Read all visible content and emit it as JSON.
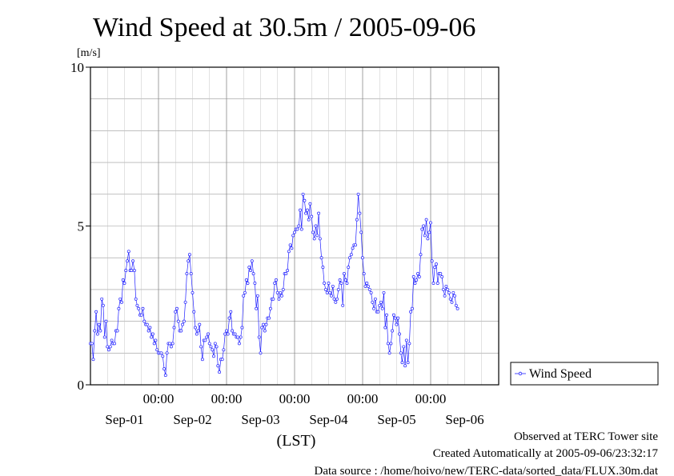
{
  "chart_data": {
    "type": "line",
    "title": "Wind Speed at 30.5m / 2005-09-06",
    "y_unit": "[m/s]",
    "ylim": [
      0,
      10
    ],
    "y_ticks": [
      0,
      5,
      10
    ],
    "y_minor_step": 1,
    "xlim": [
      0,
      6
    ],
    "x_time_ticks": [
      {
        "pos": 1,
        "label": "00:00"
      },
      {
        "pos": 2,
        "label": "00:00"
      },
      {
        "pos": 3,
        "label": "00:00"
      },
      {
        "pos": 4,
        "label": "00:00"
      },
      {
        "pos": 5,
        "label": "00:00"
      }
    ],
    "x_date_labels": [
      {
        "pos": 0.5,
        "label": "Sep-01"
      },
      {
        "pos": 1.5,
        "label": "Sep-02"
      },
      {
        "pos": 2.5,
        "label": "Sep-03"
      },
      {
        "pos": 3.5,
        "label": "Sep-04"
      },
      {
        "pos": 4.5,
        "label": "Sep-05"
      },
      {
        "pos": 5.5,
        "label": "Sep-06"
      }
    ],
    "x_grid_step": 0.25,
    "xlabel": "(LST)",
    "grid": true,
    "legend_position": "right",
    "series": [
      {
        "name": "Wind Speed",
        "color": "#2020ff",
        "x_start": 0,
        "x_step": 0.02083,
        "values": [
          1.3,
          1.3,
          0.8,
          1.7,
          2.3,
          1.6,
          1.9,
          1.7,
          2.7,
          2.5,
          1.5,
          2.0,
          1.2,
          1.1,
          1.2,
          1.4,
          1.3,
          1.3,
          1.7,
          1.7,
          2.4,
          2.7,
          2.6,
          3.3,
          3.2,
          3.6,
          3.9,
          4.2,
          3.6,
          3.6,
          3.9,
          3.6,
          2.7,
          2.5,
          2.4,
          2.2,
          2.2,
          2.4,
          2.0,
          1.9,
          1.9,
          1.7,
          1.8,
          1.5,
          1.6,
          1.3,
          1.4,
          1.1,
          1.0,
          1.0,
          1.0,
          0.9,
          0.5,
          0.3,
          1.0,
          1.3,
          1.3,
          1.2,
          1.3,
          1.8,
          2.3,
          2.4,
          2.0,
          1.7,
          1.7,
          1.9,
          2.0,
          2.6,
          3.5,
          3.9,
          4.1,
          3.5,
          2.9,
          2.3,
          1.8,
          1.6,
          1.7,
          1.9,
          1.2,
          0.8,
          1.4,
          1.4,
          1.5,
          1.6,
          1.3,
          1.2,
          1.1,
          0.9,
          1.3,
          1.2,
          0.6,
          0.4,
          0.8,
          0.8,
          1.1,
          1.6,
          1.7,
          1.6,
          2.1,
          2.3,
          1.7,
          1.6,
          1.6,
          1.5,
          1.5,
          1.3,
          1.5,
          1.8,
          2.8,
          2.9,
          3.3,
          3.2,
          3.7,
          3.6,
          3.9,
          3.5,
          3.2,
          2.4,
          2.8,
          1.5,
          1.0,
          1.8,
          1.9,
          1.7,
          1.9,
          2.1,
          2.1,
          2.4,
          2.7,
          2.7,
          3.2,
          3.3,
          2.9,
          2.7,
          2.9,
          2.8,
          3.0,
          3.5,
          3.5,
          3.6,
          4.2,
          4.4,
          4.3,
          4.7,
          4.8,
          4.9,
          4.9,
          5.0,
          5.5,
          4.9,
          6.0,
          5.8,
          5.4,
          5.5,
          5.2,
          5.7,
          5.3,
          4.8,
          4.6,
          5.0,
          4.7,
          5.4,
          4.6,
          4.0,
          3.7,
          3.2,
          3.0,
          2.9,
          3.2,
          2.9,
          2.8,
          3.1,
          2.7,
          2.6,
          2.7,
          3.0,
          3.3,
          3.2,
          2.5,
          3.5,
          3.3,
          3.2,
          3.7,
          4.0,
          4.1,
          4.3,
          4.4,
          4.4,
          5.2,
          6.0,
          5.4,
          4.8,
          4.0,
          3.5,
          3.1,
          3.2,
          3.1,
          3.0,
          2.9,
          2.6,
          2.4,
          2.7,
          2.3,
          2.3,
          2.5,
          2.6,
          2.4,
          2.9,
          1.8,
          2.2,
          1.3,
          1.0,
          1.3,
          1.7,
          2.2,
          2.1,
          1.9,
          2.1,
          1.6,
          1.0,
          0.7,
          1.2,
          0.6,
          1.4,
          0.7,
          1.3,
          2.3,
          2.4,
          3.4,
          3.2,
          3.3,
          3.5,
          3.4,
          4.1,
          4.9,
          5.0,
          4.7,
          5.2,
          4.6,
          4.8,
          5.1,
          3.9,
          3.2,
          3.7,
          3.8,
          3.2,
          3.5,
          3.5,
          3.4,
          3.0,
          2.8,
          3.1,
          3.0,
          2.9,
          2.7,
          2.6,
          2.9,
          2.8,
          2.5,
          2.4
        ]
      }
    ]
  },
  "legend": {
    "label": "Wind Speed"
  },
  "footer": {
    "site": "Observed at TERC Tower site",
    "created": "Created Automatically at 2005-09-06/23:32:17",
    "source": "Data source : /home/hoivo/new/TERC-data/sorted_data/FLUX.30m.dat"
  }
}
